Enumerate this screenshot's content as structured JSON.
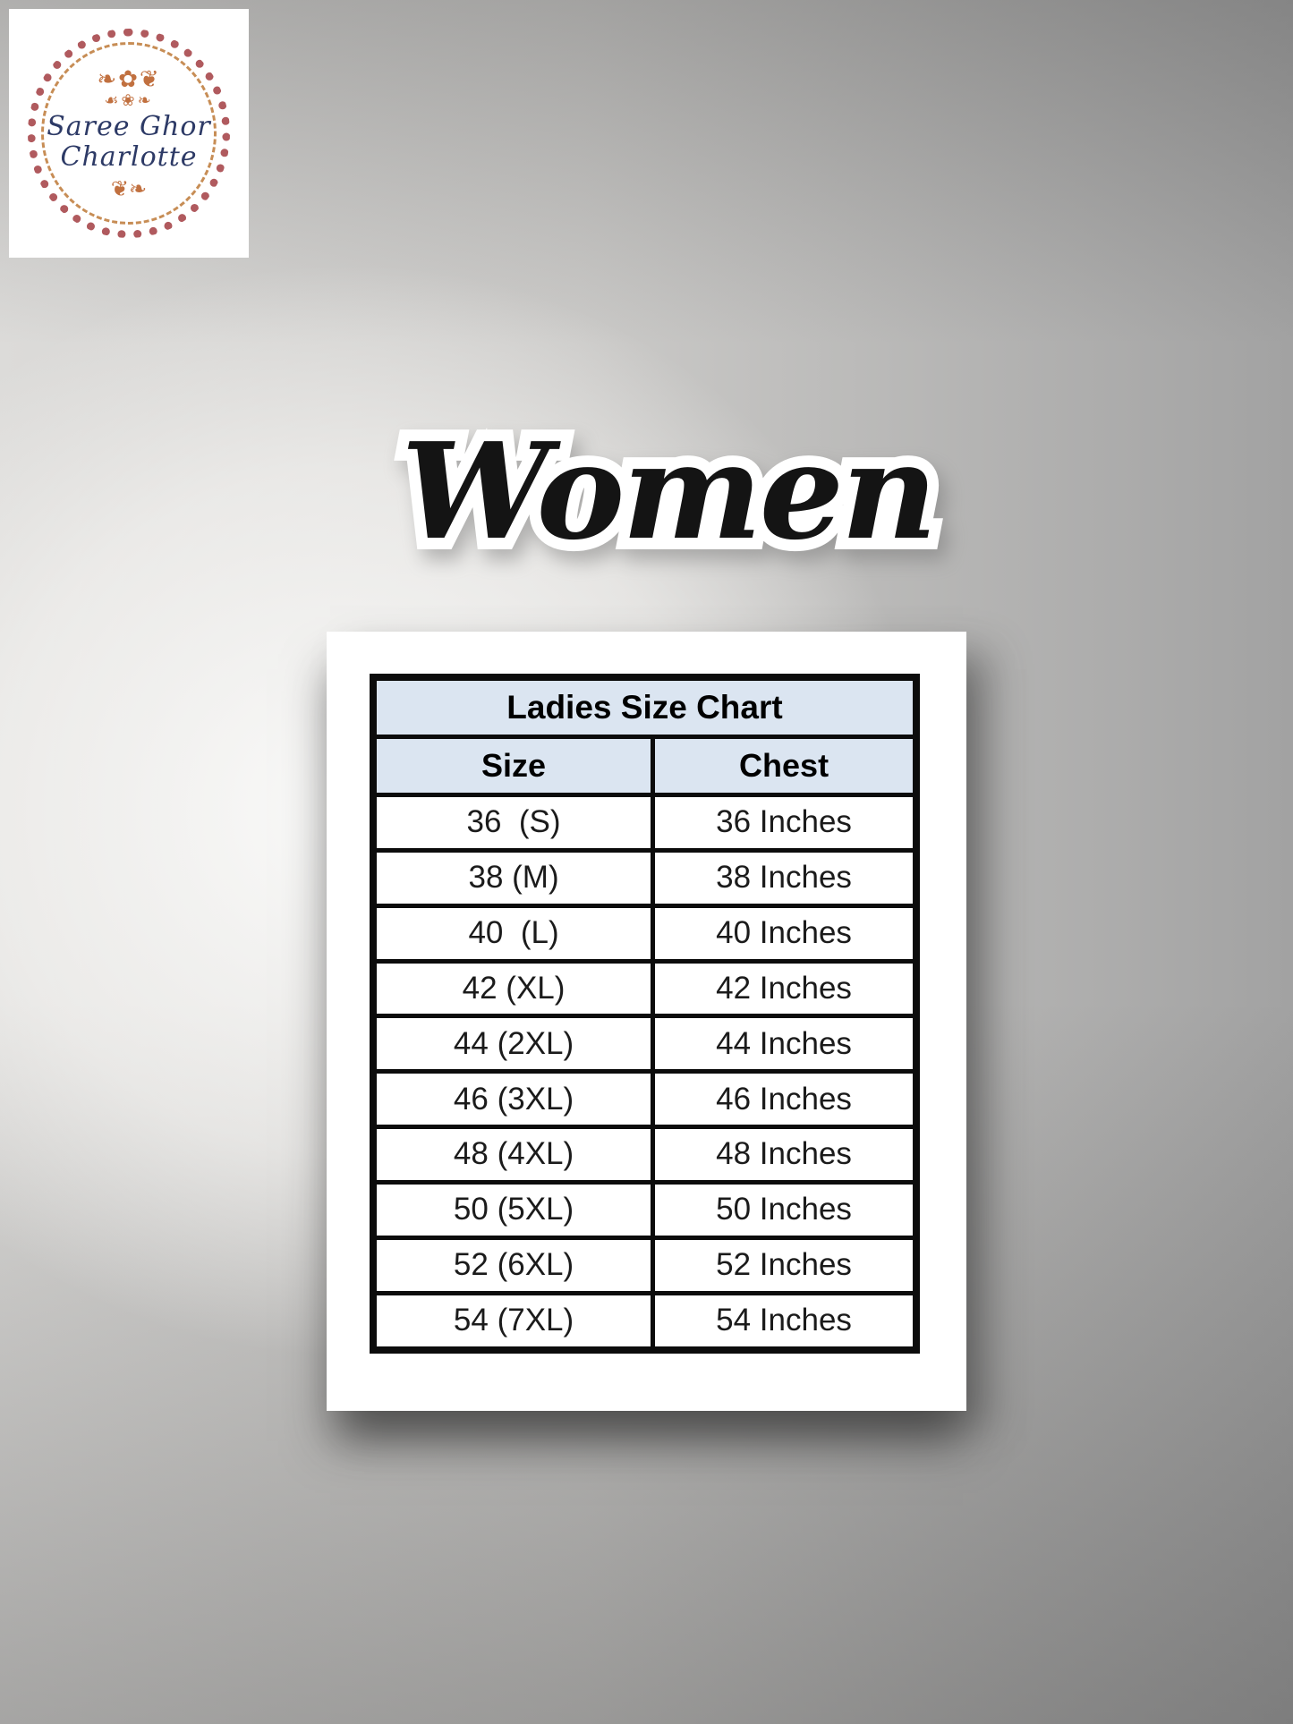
{
  "logo": {
    "line1": "Saree Ghor",
    "line2": "Charlotte"
  },
  "hero_title": "Women",
  "chart_data": {
    "type": "table",
    "title": "Ladies Size Chart",
    "columns": [
      "Size",
      "Chest"
    ],
    "rows": [
      [
        "36  (S)",
        "36 Inches"
      ],
      [
        "38 (M)",
        "38 Inches"
      ],
      [
        "40  (L)",
        "40 Inches"
      ],
      [
        "42 (XL)",
        "42 Inches"
      ],
      [
        "44 (2XL)",
        "44 Inches"
      ],
      [
        "46 (3XL)",
        "46 Inches"
      ],
      [
        "48 (4XL)",
        "48 Inches"
      ],
      [
        "50 (5XL)",
        "50 Inches"
      ],
      [
        "52 (6XL)",
        "52 Inches"
      ],
      [
        "54 (7XL)",
        "54 Inches"
      ]
    ]
  },
  "colors": {
    "table_header_bg": "#dbe5f1",
    "table_border": "#0c0c0c",
    "card_bg": "#ffffff",
    "sticker_text": "#141414",
    "logo_navy": "#2d3a66",
    "logo_rose": "#b05a5e",
    "logo_gold": "#c78d55"
  }
}
